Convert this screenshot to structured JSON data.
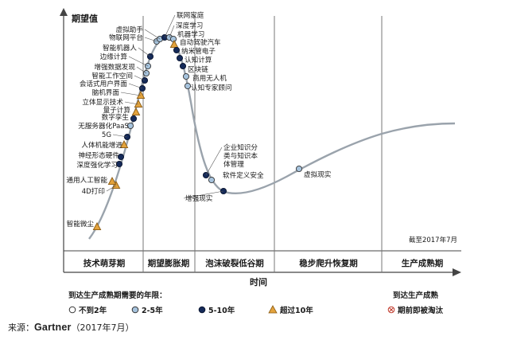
{
  "y_axis_label": "期望值",
  "x_axis_label": "时间",
  "date_note": "截至2017年7月",
  "phases": [
    "技术萌芽期",
    "期望膨胀期",
    "泡沫破裂低谷期",
    "稳步爬升恢复期",
    "生产成熟期"
  ],
  "legend": {
    "title": "到达生产成熟期需要的年限：",
    "items": [
      {
        "label": "不到2年",
        "marker": "white-circle"
      },
      {
        "label": "2-5年",
        "marker": "light-blue-circle"
      },
      {
        "label": "5-10年",
        "marker": "navy-circle"
      },
      {
        "label": "超过10年",
        "marker": "orange-triangle"
      }
    ],
    "obsolete_title": "到达生产成熟",
    "obsolete_label": "期前即被淘汰",
    "obsolete_marker": "x-circle"
  },
  "source": {
    "prefix": "来源：",
    "brand": "Gartner",
    "suffix": "（2017年7月）"
  },
  "colors": {
    "curve": "#9aa3ac",
    "navy": "#152a59",
    "light_blue": "#a6c3dd",
    "orange": "#e3a33d",
    "white_marker": "#ffffff",
    "obsolete_red": "#c0392b"
  },
  "technologies": [
    {
      "name": "智能微尘",
      "years": ">10"
    },
    {
      "name": "4D打印",
      "years": ">10"
    },
    {
      "name": "通用人工智能",
      "years": ">10"
    },
    {
      "name": "深度强化学习",
      "years": "5-10"
    },
    {
      "name": "神经形态硬件",
      "years": "5-10"
    },
    {
      "name": "人体机能增进",
      "years": ">10"
    },
    {
      "name": "5G",
      "years": "5-10"
    },
    {
      "name": "无服务器化PaaS",
      "years": "2-5"
    },
    {
      "name": "数字孪生",
      "years": "5-10"
    },
    {
      "name": "量子计算",
      "years": ">10"
    },
    {
      "name": "立体显示技术",
      "years": ">10"
    },
    {
      "name": "脑机界面",
      "years": ">10"
    },
    {
      "name": "会话式用户界面",
      "years": "5-10"
    },
    {
      "name": "智能工作空间",
      "years": "5-10"
    },
    {
      "name": "增强数据发现",
      "years": "2-5"
    },
    {
      "name": "边缘计算",
      "years": "2-5"
    },
    {
      "name": "智能机器人",
      "years": "5-10"
    },
    {
      "name": "物联网平台",
      "years": "2-5"
    },
    {
      "name": "虚拟助手",
      "years": "2-5"
    },
    {
      "name": "联网家庭",
      "years": "5-10"
    },
    {
      "name": "深度学习",
      "years": "2-5"
    },
    {
      "name": "机器学习",
      "years": "2-5"
    },
    {
      "name": "自动驾驶汽车",
      "years": ">10"
    },
    {
      "name": "纳米管电子",
      "years": "5-10"
    },
    {
      "name": "认知计算",
      "years": "5-10"
    },
    {
      "name": "区块链",
      "years": "5-10"
    },
    {
      "name": "商用无人机",
      "years": "2-5"
    },
    {
      "name": "认知专家顾问",
      "years": "2-5"
    },
    {
      "name": "企业知识分类与知识本体管理",
      "label_lines": [
        "企业知识分",
        "类与知识本",
        "体管理"
      ],
      "years": "5-10"
    },
    {
      "name": "软件定义安全",
      "years": "2-5"
    },
    {
      "name": "增强现实",
      "years": "5-10"
    },
    {
      "name": "虚拟现实",
      "years": "2-5"
    }
  ]
}
